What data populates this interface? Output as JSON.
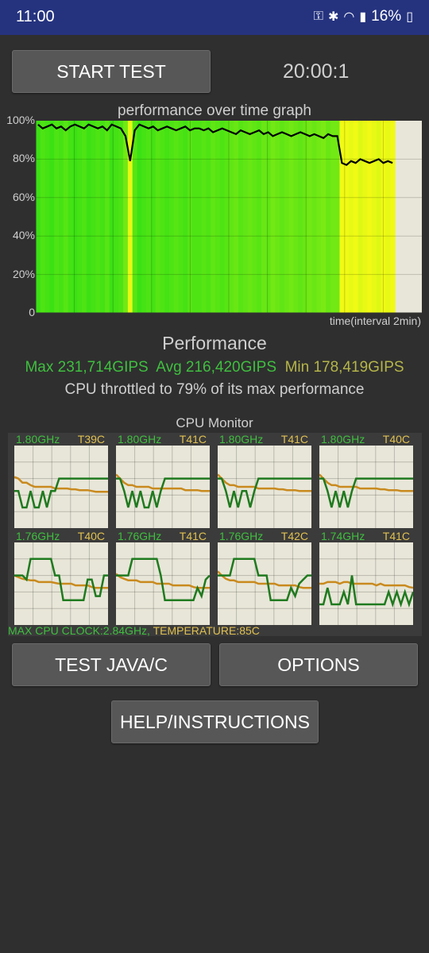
{
  "status_bar": {
    "time": "11:00",
    "battery": "16%",
    "icons": [
      "key-icon",
      "bluetooth-icon",
      "wifi-icon",
      "signal-icon",
      "battery-icon"
    ]
  },
  "controls": {
    "start_label": "START TEST",
    "timer": "20:00:1"
  },
  "graph": {
    "title": "performance over time graph",
    "x_label": "time(interval 2min)",
    "y_ticks": [
      "100%",
      "80%",
      "60%",
      "40%",
      "20%",
      "0"
    ]
  },
  "performance": {
    "heading": "Performance",
    "max": "Max 231,714GIPS",
    "avg": "Avg 216,420GIPS",
    "min": "Min 178,419GIPS",
    "throttle": "CPU throttled to 79% of its max performance"
  },
  "cpu_monitor": {
    "title": "CPU Monitor",
    "cores": [
      {
        "freq": "1.80GHz",
        "temp": "T39C"
      },
      {
        "freq": "1.80GHz",
        "temp": "T41C"
      },
      {
        "freq": "1.80GHz",
        "temp": "T41C"
      },
      {
        "freq": "1.80GHz",
        "temp": "T40C"
      },
      {
        "freq": "1.76GHz",
        "temp": "T40C"
      },
      {
        "freq": "1.76GHz",
        "temp": "T41C"
      },
      {
        "freq": "1.76GHz",
        "temp": "T42C"
      },
      {
        "freq": "1.74GHz",
        "temp": "T41C"
      }
    ],
    "footer_clock": "MAX CPU CLOCK:2.84GHz,",
    "footer_temp": "TEMPERATURE:85C"
  },
  "buttons": {
    "test_java": "TEST JAVA/C",
    "options": "OPTIONS",
    "help": "HELP/INSTRUCTIONS"
  },
  "colors": {
    "status_bar": "#25337f",
    "background": "#2f2f2f",
    "button": "#575757",
    "green_text": "#3fbf3f",
    "yellow_text": "#b5b54a",
    "temp_text": "#e0c050"
  },
  "chart_data": {
    "type": "line",
    "title": "performance over time graph",
    "xlabel": "time(interval 2min)",
    "ylabel": "",
    "ylim": [
      0,
      100
    ],
    "y_ticks": [
      "100%",
      "80%",
      "60%",
      "40%",
      "20%",
      "0"
    ],
    "series": [
      {
        "values": [
          98,
          96,
          97,
          98,
          96,
          97,
          95,
          97,
          98,
          97,
          96,
          98,
          97,
          96,
          97,
          95,
          98,
          97,
          96,
          92,
          79,
          95,
          98,
          97,
          96,
          97,
          95,
          96,
          97,
          96,
          95,
          96,
          97,
          95,
          96,
          96,
          95,
          96,
          94,
          95,
          96,
          95,
          94,
          93,
          95,
          94,
          93,
          94,
          95,
          93,
          94,
          92,
          93,
          94,
          93,
          92,
          93,
          94,
          93,
          92,
          93,
          92,
          91,
          93,
          92,
          92,
          78,
          77,
          79,
          78,
          80,
          79,
          78,
          79,
          80,
          78,
          79,
          78
        ]
      }
    ]
  }
}
